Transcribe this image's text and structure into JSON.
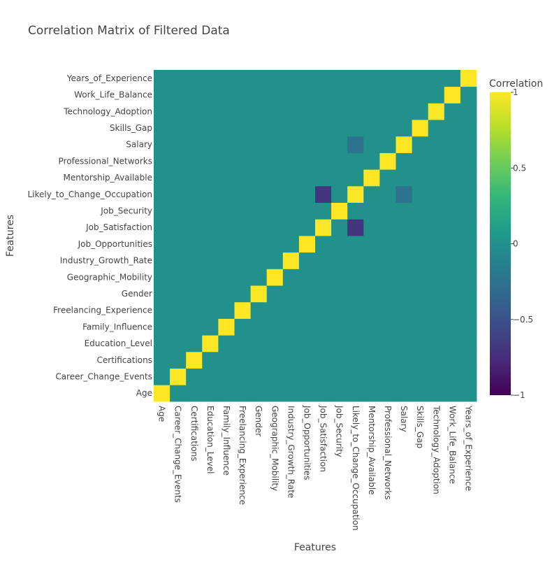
{
  "chart_data": {
    "type": "heatmap",
    "title": "Correlation Matrix of Filtered Data",
    "xlabel": "Features",
    "ylabel": "Features",
    "colorbar_title": "Correlation",
    "colorscale": "viridis",
    "zrange": [
      -1,
      1
    ],
    "colorbar_ticks": [
      {
        "value": 1,
        "label": "1"
      },
      {
        "value": 0.5,
        "label": "0.5"
      },
      {
        "value": 0,
        "label": "0"
      },
      {
        "value": -0.5,
        "label": "−0.5"
      },
      {
        "value": -1,
        "label": "−1"
      }
    ],
    "features": [
      "Age",
      "Career_Change_Events",
      "Certifications",
      "Education_Level",
      "Family_Influence",
      "Freelancing_Experience",
      "Gender",
      "Geographic_Mobility",
      "Industry_Growth_Rate",
      "Job_Opportunities",
      "Job_Satisfaction",
      "Job_Security",
      "Likely_to_Change_Occupation",
      "Mentorship_Available",
      "Professional_Networks",
      "Salary",
      "Skills_Gap",
      "Technology_Adoption",
      "Work_Life_Balance",
      "Years_of_Experience"
    ],
    "default_off_diagonal": 0.0,
    "nonzero_correlations": [
      {
        "a": "Job_Satisfaction",
        "b": "Likely_to_Change_Occupation",
        "value": -0.7
      },
      {
        "a": "Salary",
        "b": "Likely_to_Change_Occupation",
        "value": -0.25
      }
    ]
  }
}
